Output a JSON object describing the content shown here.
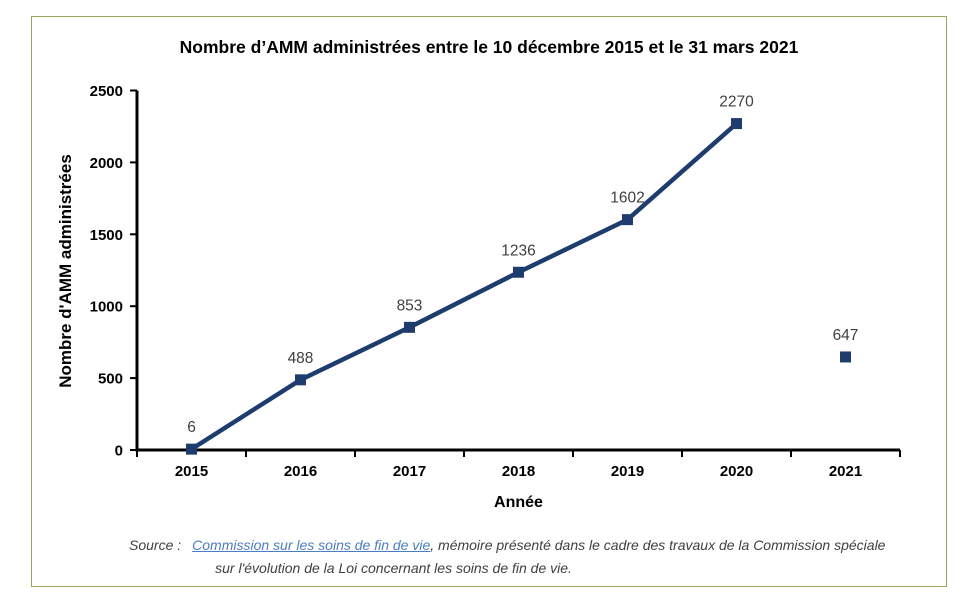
{
  "frame": {
    "border_color": "#9aa761"
  },
  "chart_data": {
    "type": "line",
    "title": "Nombre d’AMM administrées entre le 10 décembre 2015 et le 31 mars 2021",
    "categories": [
      "2015",
      "2016",
      "2017",
      "2018",
      "2019",
      "2020",
      "2021"
    ],
    "series": [
      {
        "name": "Nombre d'AMM administrées",
        "values": [
          6,
          488,
          853,
          1236,
          1602,
          2270,
          647
        ],
        "color": "#1f3c6e",
        "marker": "square"
      }
    ],
    "connected_through_index": 5,
    "isolated_point_index": 6,
    "xlabel": "Année",
    "ylabel": "Nombre d'AMM administrées",
    "ylim": [
      0,
      2500
    ],
    "yticks": [
      0,
      500,
      1000,
      1500,
      2000,
      2500
    ],
    "grid": false,
    "legend_position": "none",
    "data_label_color": "#404040",
    "axis_color": "#000000"
  },
  "source": {
    "label": "Source :",
    "link_text": "Commission sur les soins de fin de vie",
    "after_link": ", mémoire présenté dans le cadre des travaux de la Commission spéciale",
    "line2": "sur l'évolution de la Loi concernant les soins de fin de vie.",
    "link_color": "#4a7ec0",
    "text_color": "#404040"
  }
}
